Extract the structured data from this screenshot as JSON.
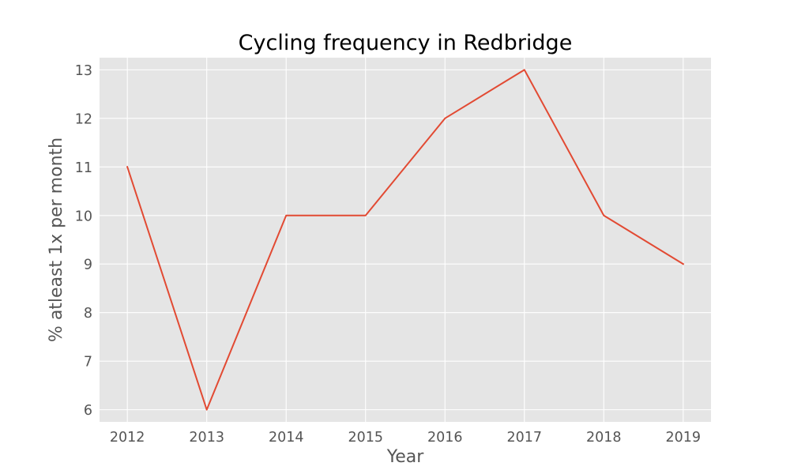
{
  "chart_data": {
    "type": "line",
    "title": "Cycling frequency in Redbridge",
    "xlabel": "Year",
    "ylabel": "% atleast 1x per month",
    "x": [
      2012,
      2013,
      2014,
      2015,
      2016,
      2017,
      2018,
      2019
    ],
    "series": [
      {
        "values": [
          11,
          6,
          10,
          10,
          12,
          13,
          10,
          9
        ],
        "color": "#E24A33"
      }
    ],
    "xticks": [
      "2012",
      "2013",
      "2014",
      "2015",
      "2016",
      "2017",
      "2018",
      "2019"
    ],
    "yticks": [
      "6",
      "7",
      "8",
      "9",
      "10",
      "11",
      "12",
      "13"
    ],
    "xlim": [
      2011.65,
      2019.35
    ],
    "ylim": [
      5.75,
      13.25
    ],
    "grid": true,
    "legend": "none",
    "colors": {
      "plot_background": "#E5E5E5",
      "grid": "#FFFFFF",
      "text": "#555555"
    }
  }
}
